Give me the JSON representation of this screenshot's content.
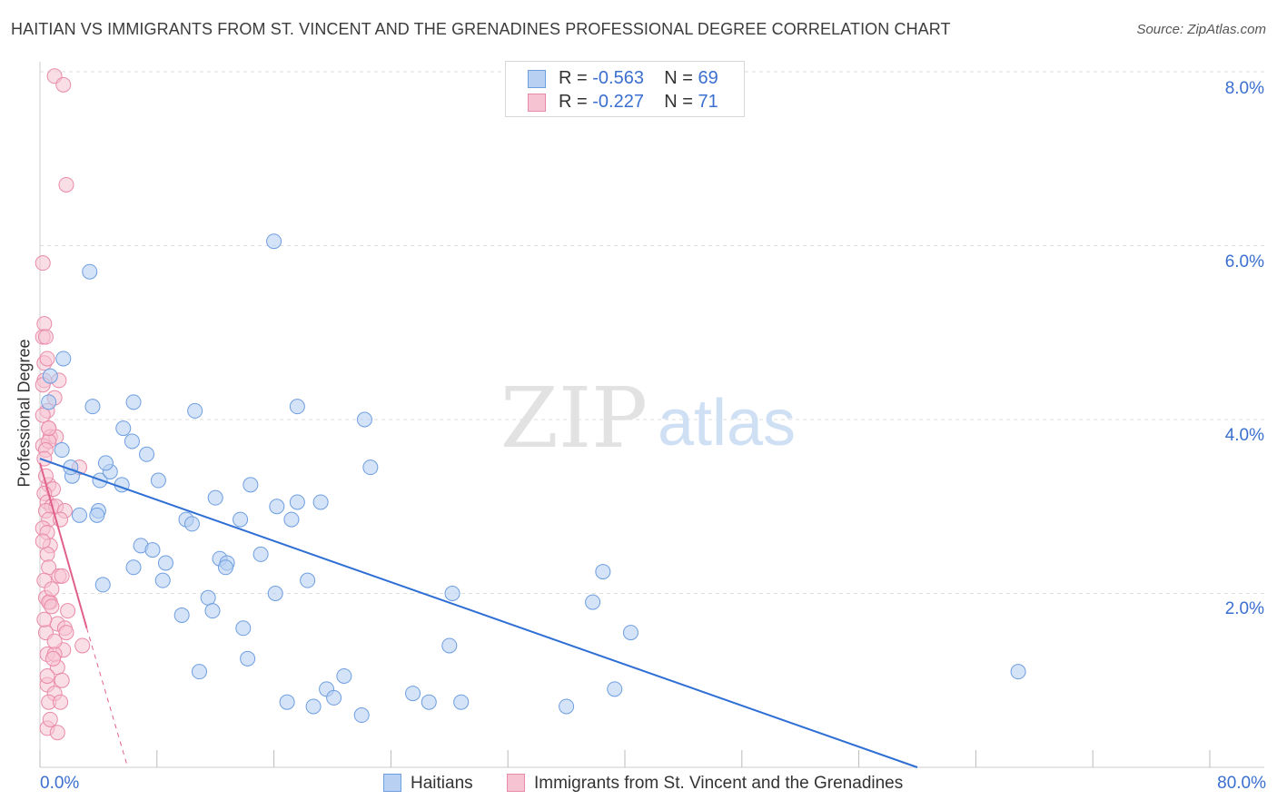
{
  "title": "HAITIAN VS IMMIGRANTS FROM ST. VINCENT AND THE GRENADINES PROFESSIONAL DEGREE CORRELATION CHART",
  "source": "Source: ZipAtlas.com",
  "watermark": {
    "zip": "ZIP",
    "atlas": "atlas"
  },
  "legend": {
    "rows": [
      {
        "r_label": "R = ",
        "r_value": "-0.563",
        "n_label": "N = ",
        "n_value": "69"
      },
      {
        "r_label": "R = ",
        "r_value": "-0.227",
        "n_label": "N = ",
        "n_value": "71"
      }
    ]
  },
  "bottom_legend": {
    "series1": "Haitians",
    "series2": "Immigrants from St. Vincent and the Grenadines"
  },
  "colors": {
    "blue_fill": "#b8d0f2",
    "blue_stroke": "#6e9ee0",
    "blue_line": "#2f6fd4",
    "pink_fill": "#f6c3d2",
    "pink_stroke": "#e98aa8",
    "pink_line": "#e0608a",
    "grid": "#dddddd",
    "axis_text": "#3a6fd0"
  },
  "chart_data": {
    "type": "scatter",
    "title": "HAITIAN VS IMMIGRANTS FROM ST. VINCENT AND THE GRENADINES PROFESSIONAL DEGREE CORRELATION CHART",
    "xlabel": "",
    "ylabel": "Professional Degree",
    "xlim": [
      0,
      80
    ],
    "ylim": [
      0,
      8
    ],
    "x_tick_labels": [
      "0.0%",
      "80.0%"
    ],
    "y_ticks": [
      {
        "value": 2,
        "label": "2.0%"
      },
      {
        "value": 4,
        "label": "4.0%"
      },
      {
        "value": 6,
        "label": "6.0%"
      },
      {
        "value": 8,
        "label": "8.0%"
      }
    ],
    "series": [
      {
        "name": "Haitians",
        "r": -0.563,
        "n": 69,
        "trend": {
          "x": [
            0,
            60
          ],
          "y": [
            3.55,
            0.0
          ]
        },
        "points": [
          [
            0.6,
            4.2
          ],
          [
            0.7,
            4.5
          ],
          [
            1.6,
            4.7
          ],
          [
            3.4,
            5.7
          ],
          [
            16,
            6.05
          ],
          [
            3.6,
            4.15
          ],
          [
            1.5,
            3.65
          ],
          [
            2.2,
            3.35
          ],
          [
            2.1,
            3.45
          ],
          [
            4.1,
            3.3
          ],
          [
            4.8,
            3.4
          ],
          [
            5.6,
            3.25
          ],
          [
            4.5,
            3.5
          ],
          [
            6.3,
            3.75
          ],
          [
            7.3,
            3.6
          ],
          [
            8.1,
            3.3
          ],
          [
            6.4,
            4.2
          ],
          [
            5.7,
            3.9
          ],
          [
            10.6,
            4.1
          ],
          [
            17.6,
            4.15
          ],
          [
            22.2,
            4.0
          ],
          [
            22.6,
            3.45
          ],
          [
            12.0,
            3.1
          ],
          [
            14.4,
            3.25
          ],
          [
            16.2,
            3.0
          ],
          [
            17.6,
            3.05
          ],
          [
            19.2,
            3.05
          ],
          [
            17.2,
            2.85
          ],
          [
            13.7,
            2.85
          ],
          [
            10.0,
            2.85
          ],
          [
            10.4,
            2.8
          ],
          [
            4.0,
            2.95
          ],
          [
            2.7,
            2.9
          ],
          [
            3.9,
            2.9
          ],
          [
            6.9,
            2.55
          ],
          [
            7.7,
            2.5
          ],
          [
            8.6,
            2.35
          ],
          [
            12.3,
            2.4
          ],
          [
            12.8,
            2.35
          ],
          [
            12.7,
            2.3
          ],
          [
            15.1,
            2.45
          ],
          [
            6.4,
            2.3
          ],
          [
            8.4,
            2.15
          ],
          [
            16.1,
            2.0
          ],
          [
            18.3,
            2.15
          ],
          [
            4.3,
            2.1
          ],
          [
            11.5,
            1.95
          ],
          [
            11.8,
            1.8
          ],
          [
            9.7,
            1.75
          ],
          [
            13.9,
            1.6
          ],
          [
            28.2,
            2.0
          ],
          [
            37.8,
            1.9
          ],
          [
            38.5,
            2.25
          ],
          [
            40.4,
            1.55
          ],
          [
            28.0,
            1.4
          ],
          [
            14.2,
            1.25
          ],
          [
            10.9,
            1.1
          ],
          [
            20.8,
            1.05
          ],
          [
            66.9,
            1.1
          ],
          [
            19.6,
            0.9
          ],
          [
            39.3,
            0.9
          ],
          [
            16.9,
            0.75
          ],
          [
            18.7,
            0.7
          ],
          [
            26.6,
            0.75
          ],
          [
            28.8,
            0.75
          ],
          [
            22.0,
            0.6
          ],
          [
            36.0,
            0.7
          ],
          [
            20.1,
            0.8
          ],
          [
            25.5,
            0.85
          ]
        ]
      },
      {
        "name": "Immigrants from St. Vincent and the Grenadines",
        "r": -0.227,
        "n": 71,
        "trend": {
          "x": [
            0,
            3.2
          ],
          "y": [
            3.5,
            1.6
          ]
        },
        "trend_extension": {
          "x": [
            3.2,
            6.0
          ],
          "y": [
            1.6,
            0.0
          ]
        },
        "points": [
          [
            1.0,
            7.95
          ],
          [
            1.6,
            7.85
          ],
          [
            1.8,
            6.7
          ],
          [
            0.2,
            5.8
          ],
          [
            0.3,
            5.1
          ],
          [
            0.2,
            4.95
          ],
          [
            0.4,
            4.95
          ],
          [
            0.3,
            4.65
          ],
          [
            0.5,
            4.7
          ],
          [
            0.3,
            4.45
          ],
          [
            1.3,
            4.45
          ],
          [
            1.0,
            4.25
          ],
          [
            0.5,
            4.1
          ],
          [
            0.2,
            4.05
          ],
          [
            0.6,
            3.9
          ],
          [
            0.7,
            3.8
          ],
          [
            1.1,
            3.8
          ],
          [
            0.2,
            3.7
          ],
          [
            0.6,
            3.75
          ],
          [
            0.4,
            3.65
          ],
          [
            0.3,
            3.55
          ],
          [
            2.7,
            3.45
          ],
          [
            0.6,
            3.25
          ],
          [
            0.9,
            3.2
          ],
          [
            0.3,
            3.15
          ],
          [
            0.5,
            3.05
          ],
          [
            0.8,
            3.0
          ],
          [
            1.1,
            3.0
          ],
          [
            0.4,
            2.95
          ],
          [
            1.7,
            2.95
          ],
          [
            0.6,
            2.85
          ],
          [
            1.4,
            2.85
          ],
          [
            0.2,
            2.75
          ],
          [
            0.5,
            2.7
          ],
          [
            0.7,
            2.55
          ],
          [
            0.5,
            2.45
          ],
          [
            0.6,
            2.3
          ],
          [
            1.3,
            2.2
          ],
          [
            1.5,
            2.2
          ],
          [
            0.3,
            2.15
          ],
          [
            0.4,
            1.95
          ],
          [
            0.7,
            1.9
          ],
          [
            0.6,
            1.9
          ],
          [
            0.8,
            1.85
          ],
          [
            1.9,
            1.8
          ],
          [
            1.2,
            1.65
          ],
          [
            1.7,
            1.6
          ],
          [
            1.8,
            1.55
          ],
          [
            0.4,
            1.55
          ],
          [
            2.9,
            1.4
          ],
          [
            1.6,
            1.35
          ],
          [
            0.5,
            1.3
          ],
          [
            1.0,
            1.3
          ],
          [
            1.2,
            1.15
          ],
          [
            1.5,
            1.0
          ],
          [
            0.5,
            0.95
          ],
          [
            1.0,
            0.85
          ],
          [
            0.6,
            0.75
          ],
          [
            1.4,
            0.75
          ],
          [
            0.5,
            0.45
          ],
          [
            1.2,
            0.4
          ],
          [
            0.9,
            1.25
          ],
          [
            0.3,
            1.7
          ],
          [
            0.2,
            2.6
          ],
          [
            0.6,
            3.9
          ],
          [
            0.2,
            4.4
          ],
          [
            0.4,
            3.35
          ],
          [
            0.8,
            2.05
          ],
          [
            1.0,
            1.45
          ],
          [
            0.7,
            0.55
          ],
          [
            0.5,
            1.05
          ]
        ]
      }
    ]
  }
}
